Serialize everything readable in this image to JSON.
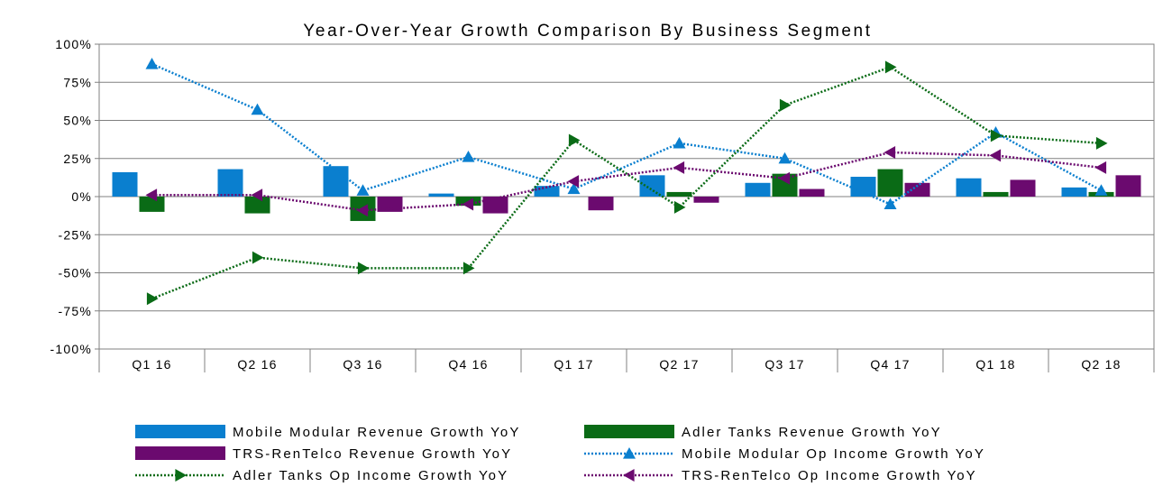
{
  "chart_data": {
    "type": "bar",
    "title": "Year-Over-Year Growth Comparison By Business Segment",
    "xlabel": "",
    "ylabel": "",
    "categories": [
      "Q1 16",
      "Q2 16",
      "Q3 16",
      "Q4 16",
      "Q1 17",
      "Q2 17",
      "Q3 17",
      "Q4 17",
      "Q1 18",
      "Q2 18"
    ],
    "ylim": [
      -100,
      100
    ],
    "yticks": [
      "100%",
      "75%",
      "50%",
      "25%",
      "0%",
      "-25%",
      "-50%",
      "-75%",
      "-100%"
    ],
    "grid": true,
    "legend_position": "bottom",
    "bar_series": [
      {
        "name": "Mobile Modular Revenue Growth YoY",
        "color": "#0a7fcf",
        "values": [
          16,
          18,
          20,
          2,
          7,
          14,
          9,
          13,
          12,
          6
        ]
      },
      {
        "name": "Adler Tanks Revenue Growth YoY",
        "color": "#0a6b16",
        "values": [
          -10,
          -11,
          -16,
          -6,
          0,
          3,
          15,
          18,
          3,
          3
        ]
      },
      {
        "name": "TRS-RenTelco Revenue Growth YoY",
        "color": "#6b0a6f",
        "values": [
          0,
          0,
          -10,
          -11,
          -9,
          -4,
          5,
          9,
          11,
          14
        ]
      }
    ],
    "line_series": [
      {
        "name": "Mobile Modular Op Income Growth YoY",
        "color": "#0a7fcf",
        "marker": "triangle-up",
        "values": [
          87,
          57,
          4,
          26,
          5,
          35,
          25,
          -5,
          42,
          4
        ]
      },
      {
        "name": "Adler Tanks Op Income Growth YoY",
        "color": "#0a6b16",
        "marker": "triangle-right",
        "values": [
          -67,
          -40,
          -47,
          -47,
          37,
          -7,
          60,
          85,
          40,
          35
        ]
      },
      {
        "name": "TRS-RenTelco Op Income Growth YoY",
        "color": "#6b0a6f",
        "marker": "triangle-left",
        "values": [
          1,
          1,
          -9,
          -5,
          10,
          19,
          12,
          29,
          27,
          19
        ]
      }
    ]
  }
}
